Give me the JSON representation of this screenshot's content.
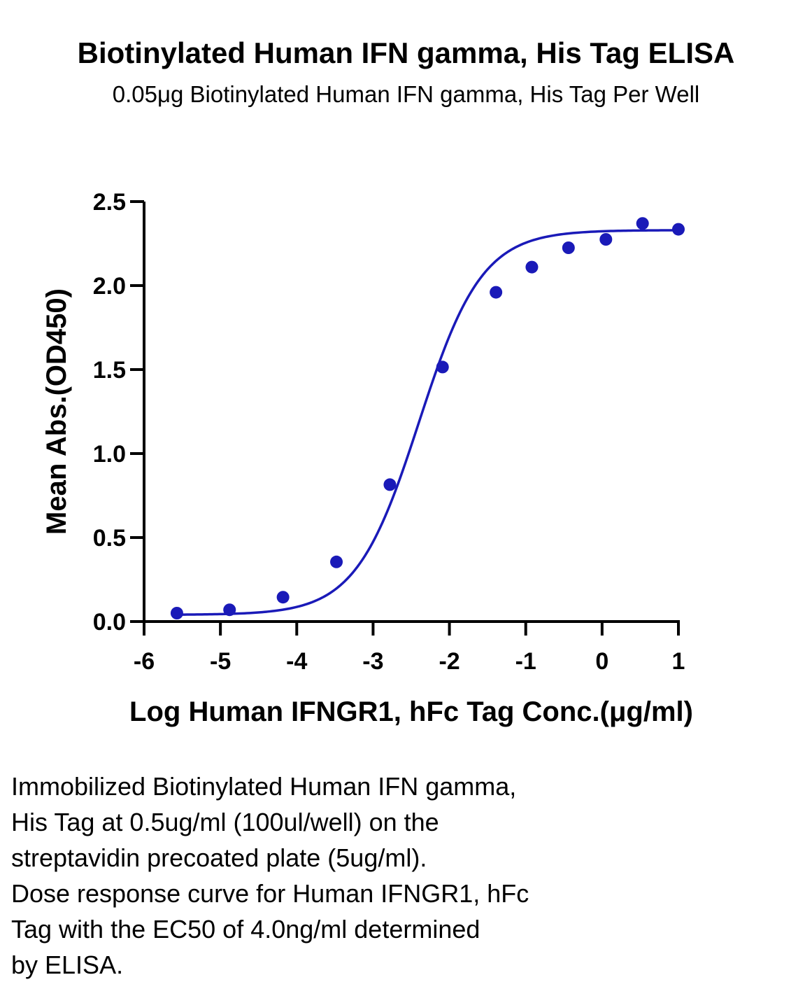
{
  "header": {
    "title": "Biotinylated Human IFN gamma, His Tag ELISA",
    "subtitle": "0.05μg Biotinylated Human IFN gamma, His Tag Per Well"
  },
  "caption": {
    "lines": [
      "Immobilized Biotinylated Human IFN gamma,",
      "His Tag at 0.5ug/ml (100ul/well) on the",
      "streptavidin precoated plate (5ug/ml).",
      "Dose response curve for Human IFNGR1, hFc",
      "Tag with the EC50 of 4.0ng/ml determined",
      "by ELISA."
    ]
  },
  "chart_data": {
    "type": "scatter",
    "title": "Biotinylated Human IFN gamma, His Tag ELISA",
    "subtitle": "0.05μg Biotinylated Human IFN gamma, His Tag Per Well",
    "xlabel": "Log Human IFNGR1, hFc Tag Conc.(μg/ml)",
    "ylabel": "Mean Abs.(OD450)",
    "xlim": [
      -6,
      1
    ],
    "ylim": [
      0,
      2.5
    ],
    "xticks": [
      -6,
      -5,
      -4,
      -3,
      -2,
      -1,
      0,
      1
    ],
    "xtick_labels": [
      "-6",
      "-5",
      "-4",
      "-3",
      "-2",
      "-1",
      "0",
      "1"
    ],
    "yticks": [
      0,
      0.5,
      1,
      1.5,
      2,
      2.5
    ],
    "ytick_labels": [
      "0.0",
      "0.5",
      "1.0",
      "1.5",
      "2.0",
      "2.5"
    ],
    "grid": false,
    "color": "#1a1ab8",
    "series": [
      {
        "x": [
          -5.57,
          -4.88,
          -4.18,
          -3.48,
          -2.78,
          -2.09,
          -1.39,
          -0.92,
          -0.44,
          0.05,
          0.53,
          1.0
        ],
        "y": [
          0.05,
          0.07,
          0.145,
          0.355,
          0.815,
          1.515,
          1.96,
          2.11,
          2.225,
          2.275,
          2.37,
          2.335
        ],
        "fit": {
          "model": "4PL",
          "bottom": 0.04,
          "top": 2.33,
          "logEC50": -2.4,
          "hill": 1.05
        }
      }
    ]
  }
}
